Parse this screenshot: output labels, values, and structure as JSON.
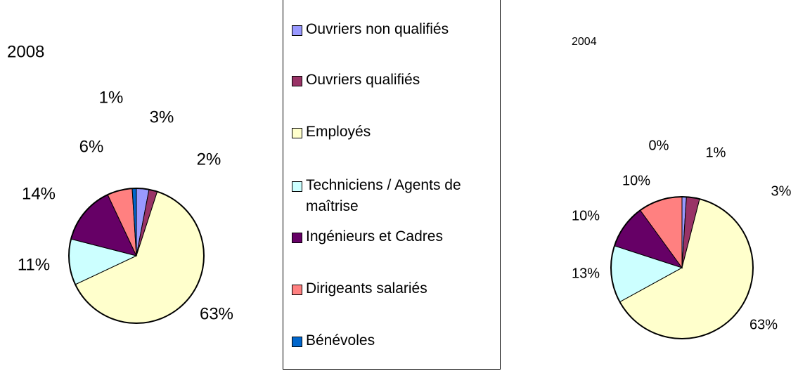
{
  "legend": [
    "Ouvriers non qualifiés",
    "Ouvriers qualifiés",
    "Employés",
    "Techniciens / Agents de maîtrise",
    "Ingénieurs et Cadres",
    "Dirigeants salariés",
    "Bénévoles"
  ],
  "colors": [
    "#9999ff",
    "#993366",
    "#ffffcc",
    "#ccffff",
    "#660066",
    "#ff8080",
    "#0066cc"
  ],
  "chart_data": [
    {
      "type": "pie",
      "title": "2008",
      "values": [
        3,
        2,
        63,
        11,
        14,
        6,
        1
      ],
      "value_labels": [
        "3%",
        "2%",
        "63%",
        "11%",
        "14%",
        "6%",
        "1%"
      ]
    },
    {
      "type": "pie",
      "title": "2004",
      "values": [
        1,
        3,
        63,
        13,
        10,
        10,
        0
      ],
      "value_labels": [
        "1%",
        "3%",
        "63%",
        "13%",
        "10%",
        "10%",
        "0%"
      ]
    }
  ]
}
